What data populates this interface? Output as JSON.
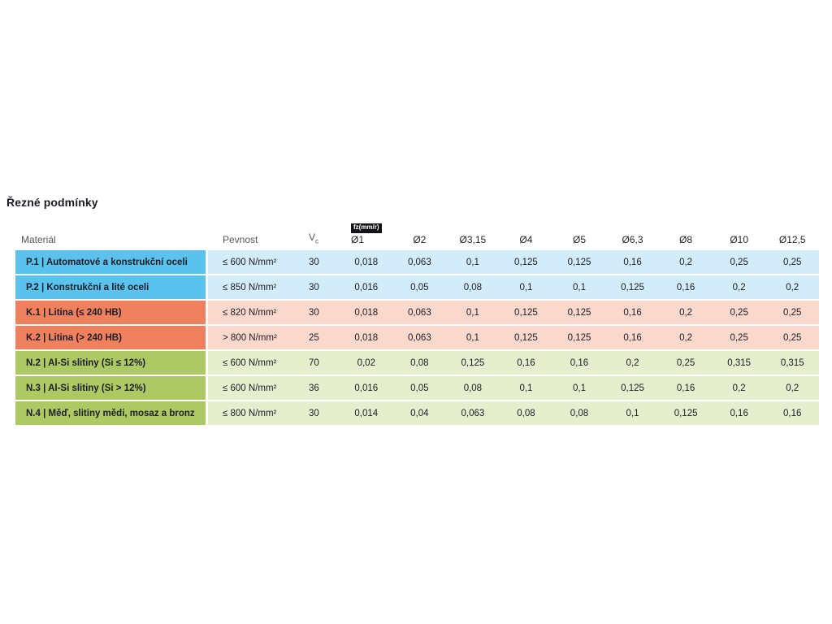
{
  "title": "Řezné podmínky",
  "table": {
    "feed_unit_badge": "fz(mm/r)",
    "columns": {
      "material": "Materiál",
      "strength": "Pevnost",
      "vc_label": "V",
      "vc_subscript": "c",
      "diameters": [
        "Ø1",
        "Ø2",
        "Ø3,15",
        "Ø4",
        "Ø5",
        "Ø6,3",
        "Ø8",
        "Ø10",
        "Ø12,5"
      ]
    },
    "group_colors": {
      "steel": {
        "label_bg": "#5ac2ec",
        "row_bg": "#d2ecfa"
      },
      "cast_iron": {
        "label_bg": "#f0815f",
        "row_bg": "#fad8cc"
      },
      "non_ferrous": {
        "label_bg": "#adc964",
        "row_bg": "#e5eecd"
      }
    },
    "rows": [
      {
        "group": "steel",
        "material": "P.1 | Automatové a konstrukční oceli",
        "strength": "≤ 600 N/mm²",
        "vc": "30",
        "values": [
          "0,018",
          "0,063",
          "0,1",
          "0,125",
          "0,125",
          "0,16",
          "0,2",
          "0,25",
          "0,25"
        ]
      },
      {
        "group": "steel",
        "material": "P.2 | Konstrukční a lité oceli",
        "strength": "≤ 850 N/mm²",
        "vc": "30",
        "values": [
          "0,016",
          "0,05",
          "0,08",
          "0,1",
          "0,1",
          "0,125",
          "0,16",
          "0,2",
          "0,2"
        ]
      },
      {
        "group": "cast_iron",
        "material": "K.1 | Litina (≤ 240 HB)",
        "strength": "≤ 820 N/mm²",
        "vc": "30",
        "values": [
          "0,018",
          "0,063",
          "0,1",
          "0,125",
          "0,125",
          "0,16",
          "0,2",
          "0,25",
          "0,25"
        ]
      },
      {
        "group": "cast_iron",
        "material": "K.2 | Litina (> 240 HB)",
        "strength": "> 800 N/mm²",
        "vc": "25",
        "values": [
          "0,018",
          "0,063",
          "0,1",
          "0,125",
          "0,125",
          "0,16",
          "0,2",
          "0,25",
          "0,25"
        ]
      },
      {
        "group": "non_ferrous",
        "material": "N.2 | Al-Si slitiny (Si ≤ 12%)",
        "strength": "≤ 600 N/mm²",
        "vc": "70",
        "values": [
          "0,02",
          "0,08",
          "0,125",
          "0,16",
          "0,16",
          "0,2",
          "0,25",
          "0,315",
          "0,315"
        ]
      },
      {
        "group": "non_ferrous",
        "material": "N.3 | Al-Si slitiny (Si > 12%)",
        "strength": "≤ 600 N/mm²",
        "vc": "36",
        "values": [
          "0,016",
          "0,05",
          "0,08",
          "0,1",
          "0,1",
          "0,125",
          "0,16",
          "0,2",
          "0,2"
        ]
      },
      {
        "group": "non_ferrous",
        "material": "N.4 | Měď, slitiny mědi, mosaz a bronz",
        "strength": "≤ 800 N/mm²",
        "vc": "30",
        "values": [
          "0,014",
          "0,04",
          "0,063",
          "0,08",
          "0,08",
          "0,1",
          "0,125",
          "0,16",
          "0,16"
        ]
      }
    ]
  }
}
